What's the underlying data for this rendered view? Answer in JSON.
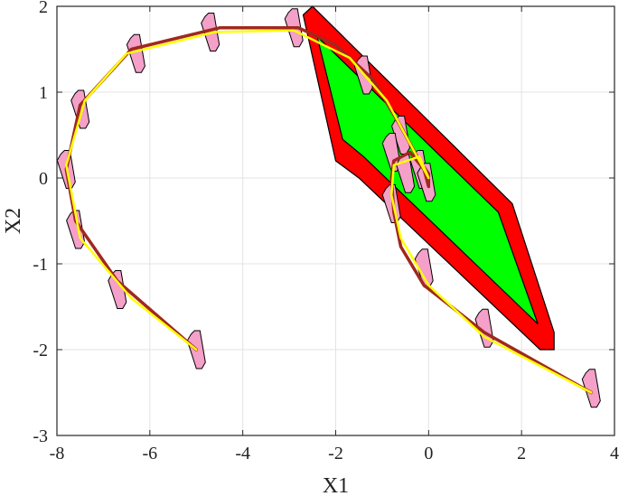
{
  "chart_data": {
    "type": "line",
    "xlabel": "X1",
    "ylabel": "X2",
    "xlim": [
      -8,
      4
    ],
    "ylim": [
      -3,
      2
    ],
    "xticks": [
      -8,
      -6,
      -4,
      -2,
      0,
      2,
      4
    ],
    "yticks": [
      -3,
      -2,
      -1,
      0,
      1,
      2
    ],
    "xtick_labels": [
      "-8",
      "-6",
      "-4",
      "-2",
      "0",
      "2",
      "4"
    ],
    "ytick_labels": [
      "-3",
      "-2",
      "-1",
      "0",
      "1",
      "2"
    ],
    "grid": true,
    "colors": {
      "outer_set": "#ff0000",
      "inner_set": "#00ff00",
      "reachable_sets": "#f4a0c8",
      "trajectory_1": "#a0281e",
      "trajectory_2": "#ffff00"
    },
    "regions": [
      {
        "role": "outer-set",
        "points": [
          [
            -2.7,
            1.9
          ],
          [
            -2.5,
            2.0
          ],
          [
            1.8,
            -0.3
          ],
          [
            2.7,
            -1.8
          ],
          [
            2.7,
            -2.0
          ],
          [
            2.4,
            -2.0
          ],
          [
            -1.5,
            0.0
          ],
          [
            -2.0,
            0.2
          ]
        ]
      },
      {
        "role": "inner-set",
        "points": [
          [
            -2.4,
            1.65
          ],
          [
            1.5,
            -0.4
          ],
          [
            2.35,
            -1.7
          ],
          [
            -1.4,
            0.25
          ],
          [
            -1.85,
            0.45
          ]
        ]
      }
    ],
    "sets": [
      [
        -5.0,
        -2.0
      ],
      [
        -6.7,
        -1.3
      ],
      [
        -7.6,
        -0.6
      ],
      [
        -7.8,
        0.1
      ],
      [
        -7.5,
        0.8
      ],
      [
        -6.3,
        1.45
      ],
      [
        -4.7,
        1.7
      ],
      [
        -2.9,
        1.75
      ],
      [
        -1.4,
        1.2
      ],
      [
        -0.6,
        0.5
      ],
      [
        -0.2,
        0.1
      ],
      [
        -0.05,
        -0.05
      ],
      [
        -0.8,
        0.3
      ],
      [
        -0.5,
        0.05
      ],
      [
        -0.8,
        -0.3
      ],
      [
        -0.1,
        -1.05
      ],
      [
        1.2,
        -1.75
      ],
      [
        3.5,
        -2.45
      ]
    ],
    "series": [
      {
        "points": [
          [
            -5.0,
            -2.0
          ],
          [
            -6.7,
            -1.2
          ],
          [
            -7.6,
            -0.5
          ],
          [
            -7.8,
            0.1
          ],
          [
            -7.5,
            0.85
          ],
          [
            -6.4,
            1.5
          ],
          [
            -4.5,
            1.75
          ],
          [
            -2.8,
            1.75
          ],
          [
            -2.0,
            1.55
          ],
          [
            -1.2,
            1.15
          ],
          [
            -0.6,
            0.6
          ],
          [
            -0.2,
            0.2
          ],
          [
            0.0,
            0.05
          ],
          [
            0.0,
            -0.1
          ],
          [
            -0.1,
            0.1
          ],
          [
            -0.4,
            0.3
          ],
          [
            -0.75,
            0.2
          ],
          [
            -0.8,
            0.0
          ],
          [
            -0.75,
            -0.4
          ],
          [
            -0.6,
            -0.8
          ],
          [
            -0.1,
            -1.25
          ],
          [
            1.2,
            -1.8
          ],
          [
            3.5,
            -2.5
          ]
        ]
      },
      {
        "points": [
          [
            -5.0,
            -2.0
          ],
          [
            -6.4,
            -1.4
          ],
          [
            -7.5,
            -0.7
          ],
          [
            -7.8,
            0.15
          ],
          [
            -7.4,
            0.9
          ],
          [
            -6.5,
            1.45
          ],
          [
            -4.6,
            1.7
          ],
          [
            -2.9,
            1.72
          ],
          [
            -1.7,
            1.4
          ],
          [
            -0.9,
            0.9
          ],
          [
            -0.35,
            0.35
          ],
          [
            0.0,
            0.0
          ],
          [
            -0.2,
            0.25
          ],
          [
            -0.75,
            0.15
          ],
          [
            -0.8,
            -0.2
          ],
          [
            -0.6,
            -0.7
          ],
          [
            0.0,
            -1.25
          ],
          [
            1.2,
            -1.85
          ],
          [
            3.5,
            -2.5
          ]
        ]
      }
    ]
  }
}
